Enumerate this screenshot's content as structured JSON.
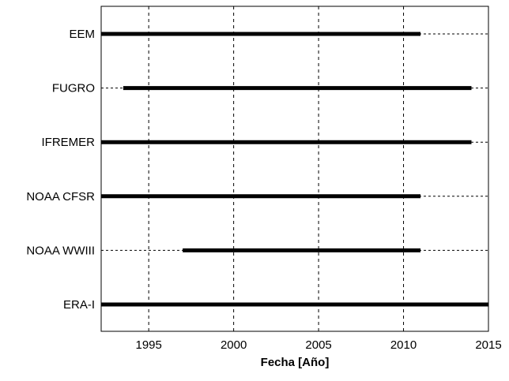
{
  "chart_data": {
    "type": "timeline",
    "title": "",
    "xlabel": "Fecha [Año]",
    "ylabel": "",
    "xlim": [
      1992.2,
      2015
    ],
    "xticks": [
      1995,
      2000,
      2005,
      2010,
      2015
    ],
    "grid": {
      "vertical": "dashed",
      "horizontal": "dotted"
    },
    "series": [
      {
        "name": "EEM",
        "start": 1992.2,
        "end": 2011.0
      },
      {
        "name": "FUGRO",
        "start": 1993.5,
        "end": 2014.0
      },
      {
        "name": "IFREMER",
        "start": 1992.2,
        "end": 2014.0
      },
      {
        "name": "NOAA CFSR",
        "start": 1992.2,
        "end": 2011.0
      },
      {
        "name": "NOAA WWIII",
        "start": 1997.0,
        "end": 2011.0
      },
      {
        "name": "ERA-I",
        "start": 1992.2,
        "end": 2015.0
      }
    ],
    "colors": {
      "bar": "#000000",
      "grid": "#000000",
      "background": "#ffffff"
    }
  }
}
